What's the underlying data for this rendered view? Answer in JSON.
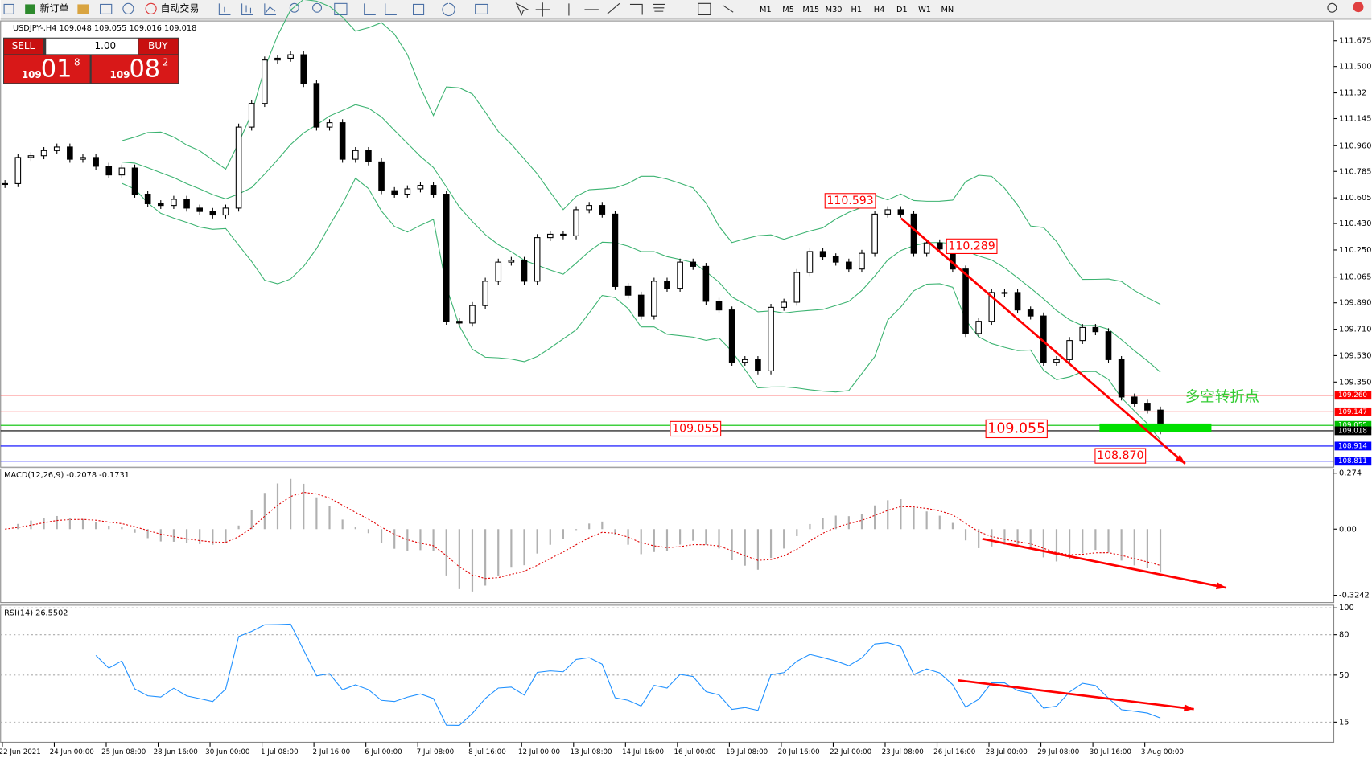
{
  "toolbar": {
    "buttons": [
      "新订单",
      "自动交易"
    ],
    "timeframes": [
      "M1",
      "M5",
      "M15",
      "M30",
      "H1",
      "H4",
      "D1",
      "W1",
      "MN"
    ]
  },
  "trade_panel": {
    "sell": "SELL",
    "buy": "BUY",
    "lots": "1.00",
    "sell_price": {
      "big": "109",
      "mid": "01",
      "small": "8"
    },
    "buy_price": {
      "big": "109",
      "mid": "08",
      "small": "2"
    }
  },
  "chart_data": {
    "type": "candlestick",
    "title": "USDJPY-,H4  109.048 109.055 109.016 109.018",
    "closes": [
      110.702,
      110.88,
      110.892,
      110.927,
      110.951,
      110.868,
      110.88,
      110.82,
      110.761,
      110.808,
      110.63,
      110.565,
      110.553,
      110.595,
      110.535,
      110.512,
      110.488,
      110.535,
      111.087,
      111.248,
      111.544,
      111.556,
      111.58,
      111.384,
      111.087,
      111.117,
      110.868,
      110.927,
      110.85,
      110.654,
      110.63,
      110.666,
      110.69,
      110.63,
      109.764,
      109.752,
      109.871,
      110.037,
      110.167,
      110.179,
      110.037,
      110.334,
      110.357,
      110.346,
      110.524,
      110.553,
      110.494,
      110.001,
      109.942,
      109.8,
      110.037,
      109.989,
      110.167,
      110.138,
      109.9,
      109.841,
      109.485,
      109.503,
      109.426,
      109.859,
      109.894,
      110.096,
      110.239,
      110.203,
      110.167,
      110.12,
      110.227,
      110.494,
      110.524,
      110.494,
      110.227,
      110.298,
      110.257,
      110.12,
      109.681,
      109.764,
      109.96,
      109.96,
      109.841,
      109.8,
      109.485,
      109.503,
      109.633,
      109.722,
      109.693,
      109.503,
      109.248,
      109.206,
      109.159,
      109.018
    ],
    "ylim": [
      108.77,
      111.81
    ],
    "yticks": [
      111.675,
      {
        "value": 111.5,
        "label": "111.500"
      },
      111.32,
      111.145,
      {
        "value": 110.96,
        "label": "110.960"
      },
      110.785,
      110.605,
      {
        "value": 110.43,
        "label": "110.430"
      },
      {
        "value": 110.25,
        "label": "110.250"
      },
      110.065,
      {
        "value": 109.89,
        "label": "109.890"
      },
      {
        "value": 109.71,
        "label": "109.710"
      },
      {
        "value": 109.53,
        "label": "109.530"
      },
      {
        "value": 109.35,
        "label": "109.350"
      }
    ],
    "levels": [
      {
        "value": 109.26,
        "label": "109.260",
        "color": "#ff0000"
      },
      {
        "value": 109.147,
        "color": "#ff0000"
      },
      {
        "value": 109.055,
        "color": "#00c000"
      },
      {
        "value": 109.018,
        "color": "#000000"
      },
      {
        "value": 108.914,
        "color": "#0000ff"
      },
      {
        "value": 108.811,
        "color": "#0000ff"
      }
    ],
    "annotations": [
      "110.593",
      "110.289",
      "109.055",
      "109.055",
      "108.870",
      "多空转折点"
    ],
    "x_labels": [
      "22 Jun 2021",
      "24 Jun 00:00",
      "25 Jun 08:00",
      "28 Jun 16:00",
      "30 Jun 00:00",
      "1 Jul 08:00",
      "2 Jul 16:00",
      "6 Jul 00:00",
      "7 Jul 08:00",
      "8 Jul 16:00",
      "12 Jul 00:00",
      "13 Jul 08:00",
      "14 Jul 16:00",
      "16 Jul 00:00",
      "19 Jul 08:00",
      "20 Jul 16:00",
      "22 Jul 00:00",
      "23 Jul 08:00",
      "26 Jul 16:00",
      "28 Jul 00:00",
      "29 Jul 08:00",
      "30 Jul 16:00",
      "3 Aug 00:00"
    ],
    "macd": {
      "label": "MACD(12,26,9) -0.2078 -0.1731",
      "ylim": [
        -0.36,
        0.295
      ],
      "yticks": [
        0.274,
        {
          "value": 0,
          "label": "0.00"
        },
        -0.3242
      ]
    },
    "rsi": {
      "label": "RSI(14) 26.5502",
      "ylim": [
        0,
        102
      ],
      "yticks": [
        100,
        80,
        50,
        15
      ]
    }
  }
}
